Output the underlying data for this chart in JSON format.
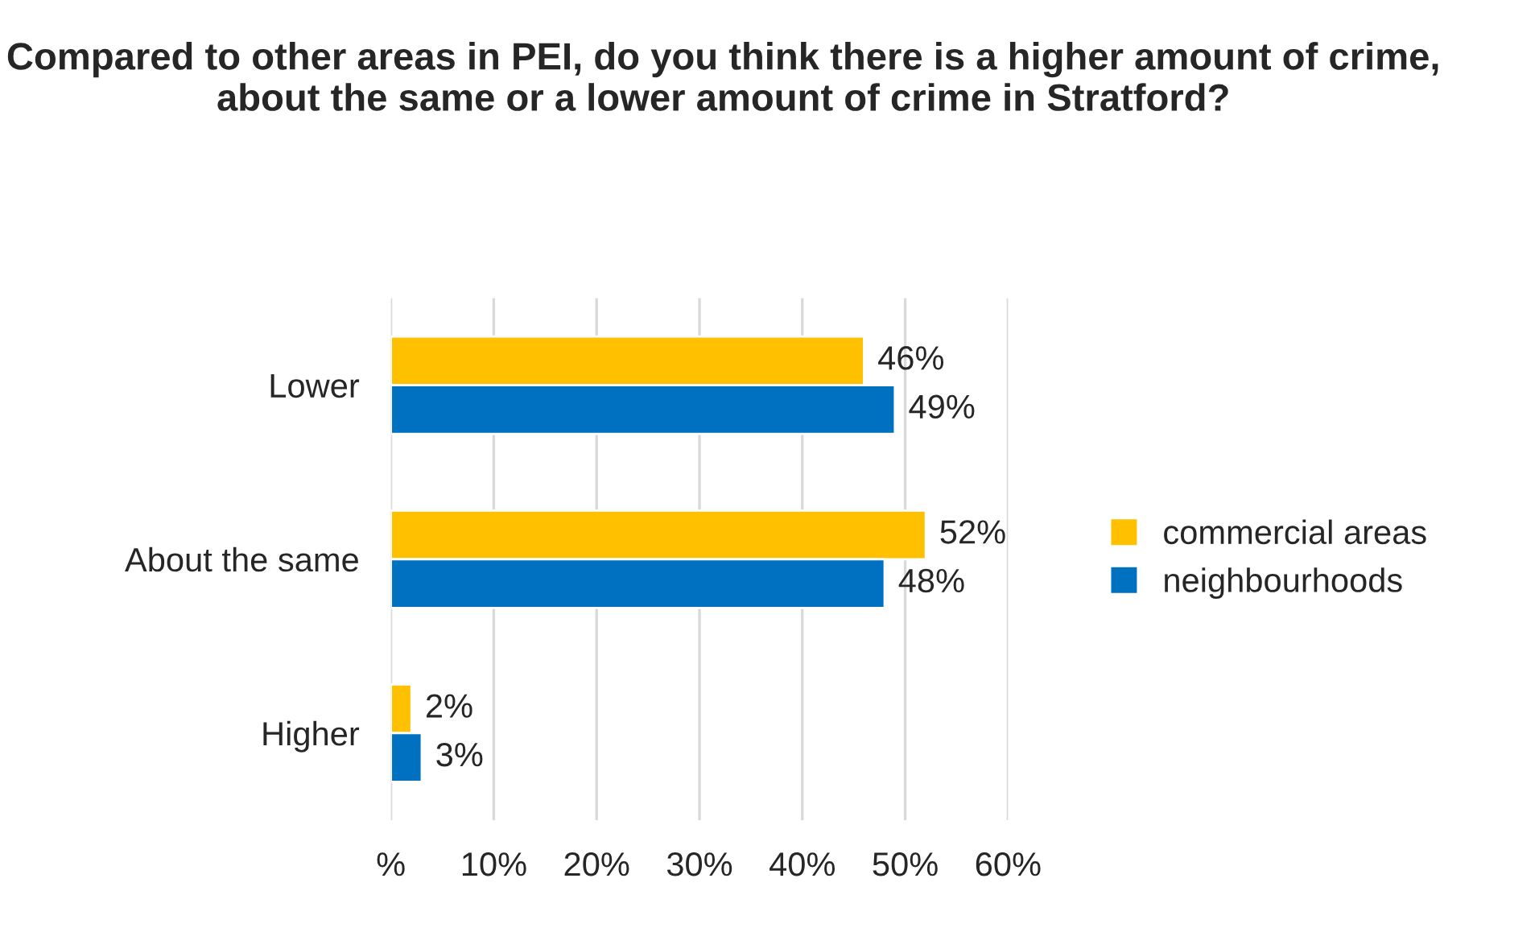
{
  "chart_data": {
    "type": "bar",
    "orientation": "horizontal",
    "title": "Compared to other areas in PEI, do you think there is a higher amount of crime, about the same or a lower amount of crime in Stratford?",
    "categories": [
      "Lower",
      "About the same",
      "Higher"
    ],
    "series": [
      {
        "name": "commercial areas",
        "color": "#ffc000",
        "values": [
          46,
          52,
          2
        ],
        "value_labels": [
          "46%",
          "52%",
          "2%"
        ]
      },
      {
        "name": "neighbourhoods",
        "color": "#0070c0",
        "values": [
          49,
          48,
          3
        ],
        "value_labels": [
          "49%",
          "48%",
          "3%"
        ]
      }
    ],
    "xlim": [
      0,
      60
    ],
    "xticks": [
      {
        "value": 0,
        "label": "%"
      },
      {
        "value": 10,
        "label": "10%"
      },
      {
        "value": 20,
        "label": "20%"
      },
      {
        "value": 30,
        "label": "30%"
      },
      {
        "value": 40,
        "label": "40%"
      },
      {
        "value": 50,
        "label": "50%"
      },
      {
        "value": 60,
        "label": "60%"
      }
    ],
    "grid": "x",
    "legend": "right"
  }
}
